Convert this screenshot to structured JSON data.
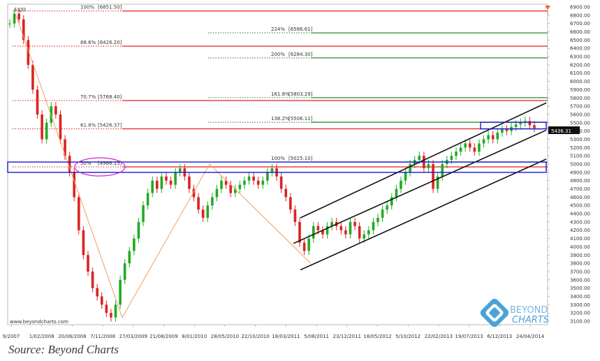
{
  "symbol": "$XJO",
  "source_text": "Source: Beyond Charts",
  "footer_url": "www.beyondcharts.com",
  "brand": {
    "top": "BEYOND",
    "bottom": "CHARTS"
  },
  "colors": {
    "retracement": "#e02020",
    "extension": "#2e8b2e",
    "channel": "#111111",
    "zone_box": "#1a1ad0",
    "circle": "#cc22cc",
    "trend": "#f0a060",
    "up_candle": "#22aa22",
    "down_candle": "#dd2222",
    "price_label_bg": "#111111",
    "marker": "#e07020"
  },
  "chart_data": {
    "type": "candlestick",
    "title": "",
    "symbol": "$XJO",
    "xlabel": "",
    "ylabel": "",
    "ylim": [
      3100,
      6900
    ],
    "y_ticks": [
      3100,
      3200,
      3300,
      3400,
      3500,
      3600,
      3700,
      3800,
      3900,
      4000,
      4100,
      4200,
      4300,
      4400,
      4500,
      4600,
      4700,
      4800,
      4900,
      5000,
      5100,
      5200,
      5300,
      5400,
      5500,
      5600,
      5700,
      5800,
      5900,
      6000,
      6100,
      6200,
      6300,
      6400,
      6500,
      6600,
      6700,
      6800,
      6900
    ],
    "x_tick_labels": [
      "9/2007",
      "1/02/2008",
      "20/06/2008",
      "7/11/2008",
      "27/03/2009",
      "21/08/2009",
      "8/01/2010",
      "28/05/2010",
      "22/10/2010",
      "18/03/2011",
      "5/08/2011",
      "23/12/2011",
      "18/05/2012",
      "5/10/2012",
      "22/02/2013",
      "19/07/2013",
      "6/12/2013",
      "24/04/2014"
    ],
    "last_price": "5436.31",
    "retracement_levels": [
      {
        "label": "100%",
        "value_text": "[6851.50]",
        "value": 6851.5
      },
      {
        "label": "88.6%",
        "value_text": "[6426.20]",
        "value": 6426.2
      },
      {
        "label": "70.7%",
        "value_text": "[5768.40]",
        "value": 5768.4
      },
      {
        "label": "61.8%",
        "value_text": "[5426.37]",
        "value": 5426.37
      },
      {
        "label": "50%",
        "value_text": "[4966.15]",
        "value": 4966.15
      }
    ],
    "extension_levels": [
      {
        "label": "224%",
        "value_text": "[6586.61]",
        "value": 6586.61
      },
      {
        "label": "200%",
        "value_text": "[6284.30]",
        "value": 6284.3
      },
      {
        "label": "161.8%",
        "value_text": "[5803.29]",
        "value": 5803.29
      },
      {
        "label": "138.2%",
        "value_text": "[5506.11]",
        "value": 5506.11
      },
      {
        "label": "100%",
        "value_text": "[5025.10]",
        "value": 5025.1
      }
    ],
    "series_close": [
      6700,
      6820,
      6750,
      6500,
      6200,
      5900,
      5600,
      5300,
      5500,
      5700,
      5600,
      5300,
      5100,
      4900,
      4600,
      4200,
      3900,
      3700,
      3500,
      3400,
      3300,
      3200,
      3145,
      3300,
      3600,
      3800,
      3950,
      4100,
      4300,
      4500,
      4650,
      4800,
      4700,
      4850,
      4800,
      4750,
      4900,
      4950,
      4850,
      4700,
      4600,
      4450,
      4350,
      4500,
      4600,
      4700,
      4800,
      4750,
      4650,
      4700,
      4750,
      4800,
      4850,
      4800,
      4750,
      4800,
      4900,
      4950,
      4850,
      4700,
      4600,
      4450,
      4300,
      4050,
      3950,
      4100,
      4250,
      4200,
      4150,
      4250,
      4300,
      4250,
      4200,
      4150,
      4300,
      4250,
      4100,
      4150,
      4200,
      4300,
      4350,
      4450,
      4500,
      4600,
      4700,
      4800,
      4900,
      5000,
      5050,
      5100,
      4950,
      5000,
      4700,
      4850,
      5000,
      5050,
      5100,
      5150,
      5200,
      5250,
      5200,
      5150,
      5250,
      5300,
      5350,
      5300,
      5380,
      5420,
      5400,
      5450,
      5480,
      5500,
      5520,
      5470,
      5436
    ]
  }
}
